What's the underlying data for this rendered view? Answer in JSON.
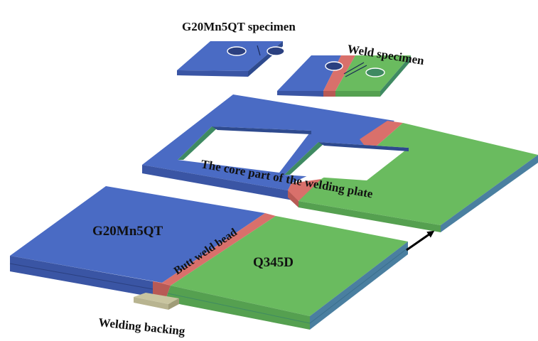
{
  "labels": {
    "g20_specimen": "G20Mn5QT specimen",
    "weld_specimen": "Weld specimen",
    "core_part": "The core part of the welding plate",
    "g20_plate": "G20Mn5QT",
    "butt_weld": "Butt weld bead",
    "q345d": "Q345D",
    "backing": "Welding backing"
  },
  "colors": {
    "g20mn5qt": "#4a6bc4",
    "q345d": "#6abb5f",
    "weld_bead": "#d9706b",
    "backing": "#b8b490",
    "edge_dark": "#2e4a8e",
    "edge_green": "#3f8a62"
  }
}
